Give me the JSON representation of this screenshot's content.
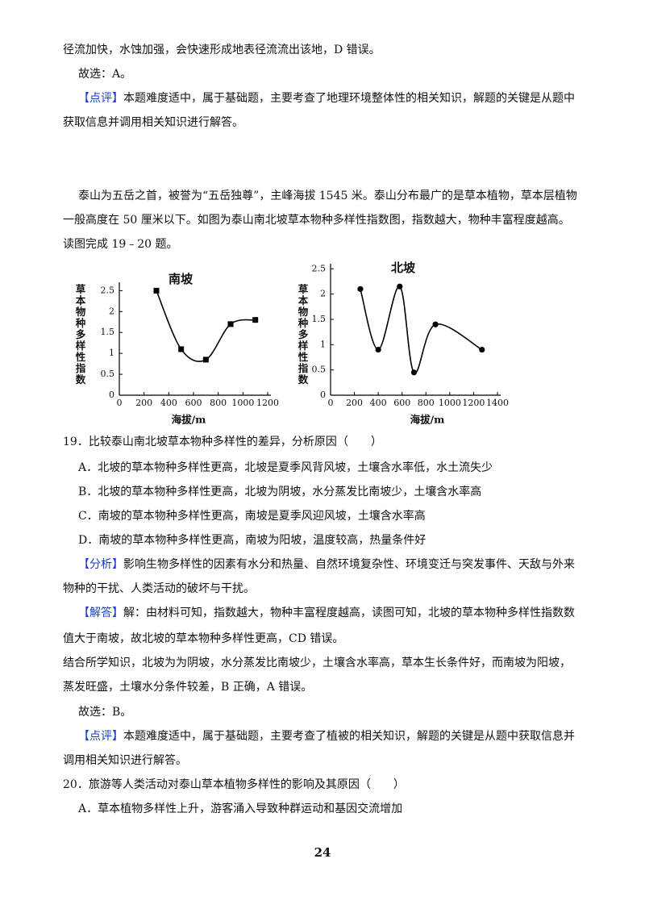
{
  "body": [
    "径流加快，水蚀加强，会快速形成地表径流流出该地，D 错误。",
    "故选：A。",
    {
      "label": "【点评】",
      "text": "本题难度适中，属于基础题，主要考查了地理环境整体性的相关知识，解题的关键是从题中"
    },
    "获取信息并调用相关知识进行解答。",
    "泰山为五岳之首，被誉为“五岳独尊”，主峰海拔 1545 米。泰山分布最广的是草本植物，草本层植物",
    "一般高度在 50 厘米以下。如图为泰山南北坡草本物种多样性指数图，指数越大，物种丰富程度越高。",
    "读图完成 19﹣20 题。",
    "19．比较泰山南北坡草本物种多样性的差异，分析原因（　　）",
    "A．北坡的草本物种多样性更高，北坡是夏季风背风坡，土壤含水率低，水土流失少",
    "B．北坡的草本物种多样性更高，北坡为阴坡，水分蒸发比南坡少，土壤含水率高",
    "C．南坡的草本物种多样性更高，南坡是夏季风迎风坡，土壤含水率高",
    "D．南坡的草本物种多样性更高，南坡为阳坡，温度较高，热量条件好",
    {
      "label": "【分析】",
      "text": "影响生物多样性的因素有水分和热量、自然环境复杂性、环境变迁与突发事件、天敌与外来"
    },
    "物种的干扰、人类活动的破坏与干扰。",
    {
      "label": "【解答】",
      "text": "解：由材料可知，指数越大，物种丰富程度越高，读图可知，北坡的草本物种多样性指数数"
    },
    "值大于南坡，故北坡的草本物种多样性更高，CD 错误。",
    "结合所学知识，北坡为为阴坡，水分蒸发比南坡少，土壤含水率高，草本生长条件好，而南坡为阳坡，",
    "蒸发旺盛，土壤水分条件较差，B 正确，A 错误。",
    "故选：B。",
    {
      "label": "【点评】",
      "text": "本题难度适中，属于基础题，主要考查了植被的相关知识，解题的关键是从题中获取信息并"
    },
    "调用相关知识进行解答。",
    "20．旅游等人类活动对泰山草本植物多样性的影响及其原因（　　）",
    "A．草本植物多样性上升，游客涌入导致种群运动和基因交流增加"
  ],
  "page_number": "24",
  "chart_data": [
    {
      "type": "line",
      "title": "南坡",
      "y_label": "草本物种多样性指数",
      "x_label": "海拔/m",
      "x": [
        300,
        500,
        700,
        900,
        1100
      ],
      "values": [
        2.5,
        1.1,
        0.85,
        1.7,
        1.8
      ],
      "marker": "square",
      "color": "#000000",
      "xlim": [
        0,
        1200
      ],
      "xticks": [
        0,
        200,
        400,
        600,
        800,
        1000,
        1200
      ],
      "ylim": [
        0,
        2.7
      ],
      "yticks": [
        0,
        0.5,
        1,
        1.5,
        2,
        2.5
      ]
    },
    {
      "type": "line",
      "title": "北坡",
      "y_label": "草本物种多样性指数",
      "x_label": "海拔/m",
      "x": [
        250,
        400,
        580,
        700,
        880,
        1270
      ],
      "values": [
        2.1,
        0.9,
        2.15,
        0.45,
        1.4,
        0.9
      ],
      "marker": "circle",
      "color": "#000000",
      "xlim": [
        0,
        1400
      ],
      "xticks": [
        0,
        200,
        400,
        600,
        800,
        1000,
        1200,
        1400
      ],
      "ylim": [
        0,
        2.6
      ],
      "yticks": [
        0,
        0.5,
        1,
        1.5,
        2,
        2.5
      ]
    }
  ]
}
